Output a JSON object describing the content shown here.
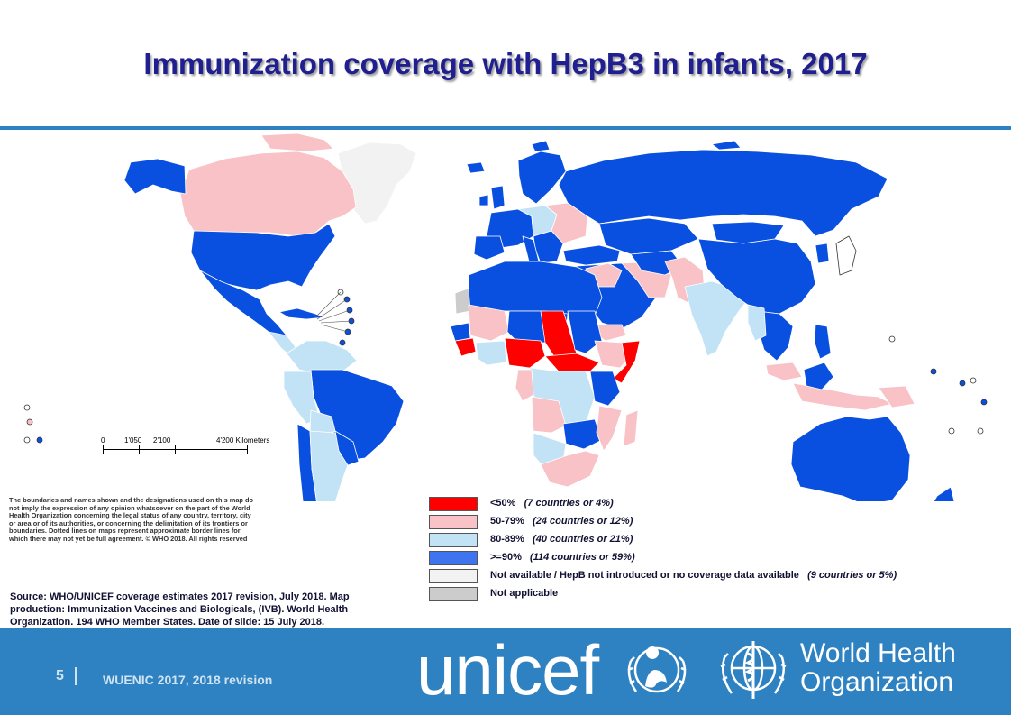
{
  "title": "Immunization coverage with HepB3 in infants, 2017",
  "scale_bar": {
    "labels": [
      "0",
      "1'050",
      "2'100",
      "4'200 Kilometers"
    ]
  },
  "disclaimer": "The boundaries and names shown and the designations used on this map do not imply the expression of any opinion whatsoever on the part of the World Health Organization concerning the legal status of any country, territory, city or area or of its authorities, or concerning the delimitation of its frontiers or boundaries. Dotted lines on maps represent approximate border lines for which there may not yet be full agreement. © WHO 2018. All rights reserved",
  "source": "Source: WHO/UNICEF coverage estimates 2017 revision, July 2018. Map production: Immunization Vaccines and Biologicals, (IVB). World Health Organization. 194 WHO Member States. Date of slide: 15 July 2018.",
  "legend": [
    {
      "label": "<50%",
      "detail": "(7 countries or 4%)",
      "color": "#ff0000"
    },
    {
      "label": "50-79%",
      "detail": "(24 countries or 12%)",
      "color": "#f8c2c6"
    },
    {
      "label": "80-89%",
      "detail": "(40 countries or 21%)",
      "color": "#c2e2f6"
    },
    {
      "label": ">=90%",
      "detail": "(114 countries or 59%)",
      "color": "#3f74f0"
    },
    {
      "label": "Not available / HepB not introduced or no coverage data available",
      "detail": "(9 countries or 5%)",
      "color": "#f2f2f2"
    },
    {
      "label": "Not applicable",
      "detail": "",
      "color": "#cccccc"
    }
  ],
  "map_colors": {
    "high": "#0a50e0",
    "mid": "#c2e2f6",
    "low": "#f8c2c6",
    "critical": "#ff0000",
    "na": "#f2f2f2",
    "not_applicable": "#cccccc"
  },
  "footer": {
    "slide_number": "5",
    "text": "WUENIC 2017, 2018 revision",
    "unicef_wordmark": "unicef",
    "who_name_line1": "World Health",
    "who_name_line2": "Organization",
    "background": "#2f82c1"
  }
}
